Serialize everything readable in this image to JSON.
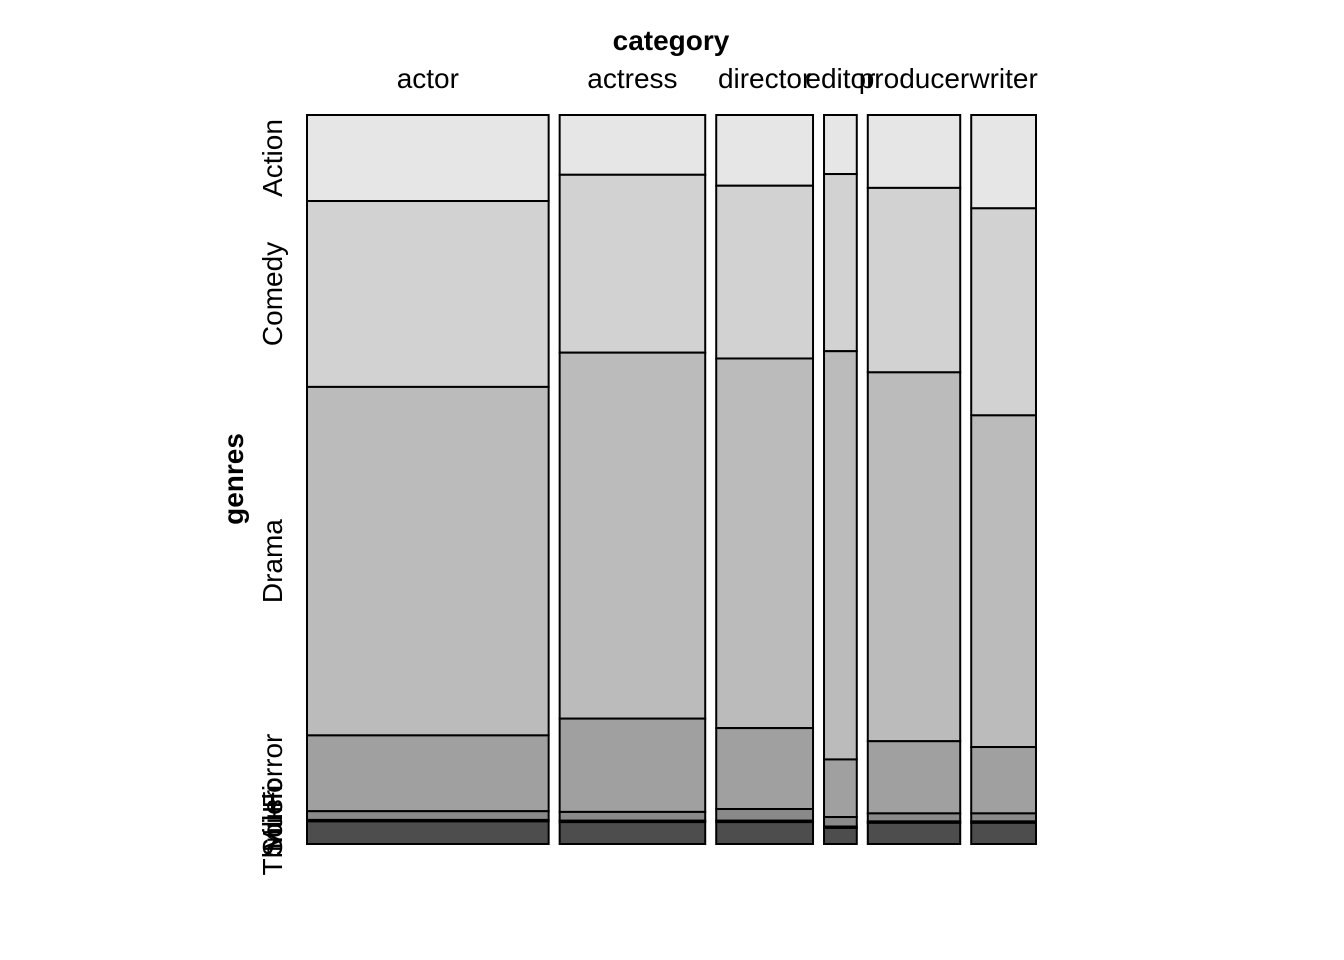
{
  "chart_data": {
    "type": "mosaic",
    "xlabel": "category",
    "ylabel": "genres",
    "categories": [
      "actor",
      "actress",
      "director",
      "editor",
      "producer",
      "writer"
    ],
    "category_widths": [
      0.332,
      0.2,
      0.133,
      0.045,
      0.127,
      0.089
    ],
    "genres": [
      "Action",
      "Comedy",
      "Drama",
      "Horror",
      "Music",
      "Sci-Fi",
      "Thriller"
    ],
    "genre_labels": [
      "Action",
      "Comedy",
      "Drama",
      "Horror",
      "Music",
      "Sci-Fi",
      "Thriller"
    ],
    "genre_colors": [
      "#E6E6E6",
      "#D2D2D2",
      "#BBBBBB",
      "#A0A0A0",
      "#8A8A8A",
      "#6E6E6E",
      "#4D4D4D"
    ],
    "proportions": {
      "actor": [
        0.118,
        0.255,
        0.478,
        0.104,
        0.012,
        0.002,
        0.031
      ],
      "actress": [
        0.082,
        0.244,
        0.502,
        0.128,
        0.012,
        0.002,
        0.03
      ],
      "director": [
        0.097,
        0.237,
        0.507,
        0.111,
        0.016,
        0.002,
        0.03
      ],
      "editor": [
        0.081,
        0.243,
        0.56,
        0.079,
        0.013,
        0.002,
        0.022
      ],
      "producer": [
        0.1,
        0.253,
        0.506,
        0.099,
        0.011,
        0.002,
        0.029
      ],
      "writer": [
        0.128,
        0.284,
        0.455,
        0.091,
        0.011,
        0.002,
        0.029
      ]
    }
  }
}
